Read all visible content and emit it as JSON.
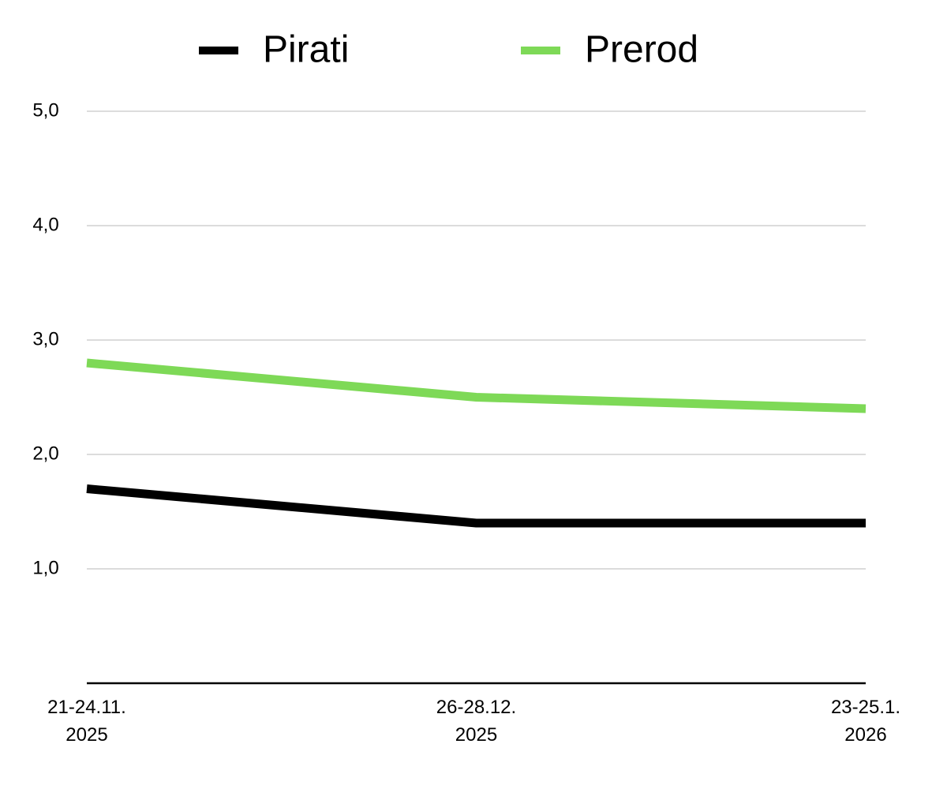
{
  "chart_data": {
    "type": "line",
    "categories": [
      "21-24.11. 2025",
      "26-28.12. 2025",
      "23-25.1. 2026"
    ],
    "series": [
      {
        "name": "Pirati",
        "color": "#000000",
        "values": [
          1.7,
          1.4,
          1.4
        ]
      },
      {
        "name": "Prerod",
        "color": "#7ed957",
        "values": [
          2.8,
          2.5,
          2.4
        ]
      }
    ],
    "ylim": [
      0,
      5
    ],
    "yticks": [
      {
        "value": 1,
        "label": "1,0"
      },
      {
        "value": 2,
        "label": "2,0"
      },
      {
        "value": 3,
        "label": "3,0"
      },
      {
        "value": 4,
        "label": "4,0"
      },
      {
        "value": 5,
        "label": "5,0"
      }
    ],
    "grid": true
  }
}
